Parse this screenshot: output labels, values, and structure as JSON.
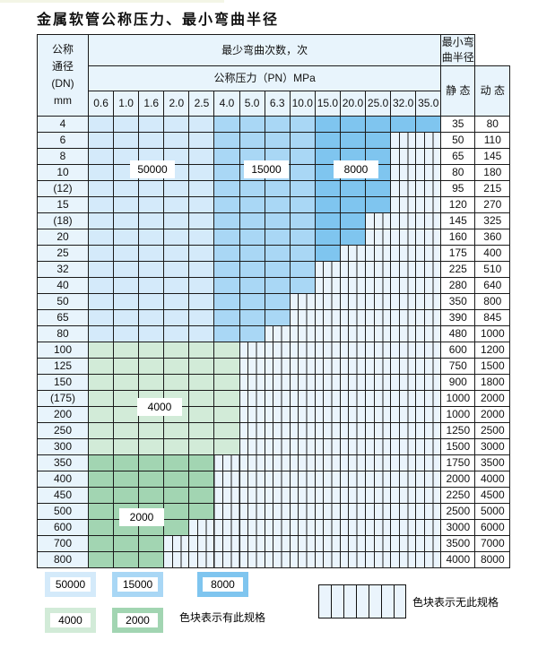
{
  "title": "金属软管公称压力、最小弯曲半径",
  "header": {
    "dn_label": [
      "公称",
      "通径",
      "(DN)",
      "mm"
    ],
    "cycles_label": "最少弯曲次数，次",
    "pressure_label": "公称压力（PN）MPa",
    "radius_label": "最小弯曲半径",
    "static_label": "静 态",
    "dynamic_label": "动 态",
    "pressures": [
      "0.6",
      "1.0",
      "1.6",
      "2.0",
      "2.5",
      "4.0",
      "5.0",
      "6.3",
      "10.0",
      "15.0",
      "20.0",
      "25.0",
      "32.0",
      "35.0"
    ]
  },
  "blue_column_tiers": [
    "50000",
    "50000",
    "50000",
    "50000",
    "50000",
    "15000",
    "15000",
    "15000",
    "15000",
    "8000",
    "8000",
    "8000",
    "8000",
    "8000"
  ],
  "rows": [
    {
      "dn": "4",
      "static": "35",
      "dynamic": "80",
      "available_columns": 14,
      "group": "blue"
    },
    {
      "dn": "6",
      "static": "50",
      "dynamic": "110",
      "available_columns": 12,
      "group": "blue"
    },
    {
      "dn": "8",
      "static": "65",
      "dynamic": "145",
      "available_columns": 12,
      "group": "blue"
    },
    {
      "dn": "10",
      "static": "80",
      "dynamic": "180",
      "available_columns": 12,
      "group": "blue"
    },
    {
      "dn": "(12)",
      "static": "95",
      "dynamic": "215",
      "available_columns": 12,
      "group": "blue"
    },
    {
      "dn": "15",
      "static": "120",
      "dynamic": "270",
      "available_columns": 12,
      "group": "blue"
    },
    {
      "dn": "(18)",
      "static": "145",
      "dynamic": "325",
      "available_columns": 11,
      "group": "blue"
    },
    {
      "dn": "20",
      "static": "160",
      "dynamic": "360",
      "available_columns": 11,
      "group": "blue"
    },
    {
      "dn": "25",
      "static": "175",
      "dynamic": "400",
      "available_columns": 10,
      "group": "blue"
    },
    {
      "dn": "32",
      "static": "225",
      "dynamic": "510",
      "available_columns": 9,
      "group": "blue"
    },
    {
      "dn": "40",
      "static": "280",
      "dynamic": "640",
      "available_columns": 9,
      "group": "blue"
    },
    {
      "dn": "50",
      "static": "350",
      "dynamic": "800",
      "available_columns": 8,
      "group": "blue"
    },
    {
      "dn": "65",
      "static": "390",
      "dynamic": "845",
      "available_columns": 8,
      "group": "blue"
    },
    {
      "dn": "80",
      "static": "480",
      "dynamic": "1000",
      "available_columns": 7,
      "group": "blue"
    },
    {
      "dn": "100",
      "static": "600",
      "dynamic": "1200",
      "available_columns": 6,
      "group": "4000"
    },
    {
      "dn": "125",
      "static": "750",
      "dynamic": "1500",
      "available_columns": 6,
      "group": "4000"
    },
    {
      "dn": "150",
      "static": "900",
      "dynamic": "1800",
      "available_columns": 6,
      "group": "4000"
    },
    {
      "dn": "(175)",
      "static": "1000",
      "dynamic": "2000",
      "available_columns": 6,
      "group": "4000"
    },
    {
      "dn": "200",
      "static": "1000",
      "dynamic": "2000",
      "available_columns": 6,
      "group": "4000"
    },
    {
      "dn": "250",
      "static": "1250",
      "dynamic": "2500",
      "available_columns": 6,
      "group": "4000"
    },
    {
      "dn": "300",
      "static": "1500",
      "dynamic": "3000",
      "available_columns": 6,
      "group": "4000"
    },
    {
      "dn": "350",
      "static": "1750",
      "dynamic": "3500",
      "available_columns": 5,
      "group": "2000"
    },
    {
      "dn": "400",
      "static": "2000",
      "dynamic": "4000",
      "available_columns": 5,
      "group": "2000"
    },
    {
      "dn": "450",
      "static": "2250",
      "dynamic": "4500",
      "available_columns": 5,
      "group": "2000"
    },
    {
      "dn": "500",
      "static": "2500",
      "dynamic": "5000",
      "available_columns": 5,
      "group": "2000"
    },
    {
      "dn": "600",
      "static": "3000",
      "dynamic": "6000",
      "available_columns": 4,
      "group": "2000"
    },
    {
      "dn": "700",
      "static": "3500",
      "dynamic": "7000",
      "available_columns": 3,
      "group": "2000"
    },
    {
      "dn": "800",
      "static": "4000",
      "dynamic": "8000",
      "available_columns": 3,
      "group": "2000"
    }
  ],
  "region_labels": {
    "r50000": "50000",
    "r15000": "15000",
    "r8000": "8000",
    "r4000": "4000",
    "r2000": "2000"
  },
  "legend": {
    "items": [
      "50000",
      "15000",
      "8000",
      "4000",
      "2000"
    ],
    "available_text": "色块表示有此规格",
    "unavailable_text": "色块表示无此规格"
  },
  "colors": {
    "50000": "#d4eafa",
    "15000": "#a9d7f5",
    "8000": "#7fc5ef",
    "4000": "#d2ebd8",
    "2000": "#a2d5b2",
    "unavailable": "#eaf4fc",
    "header": "#e8f4fc"
  }
}
